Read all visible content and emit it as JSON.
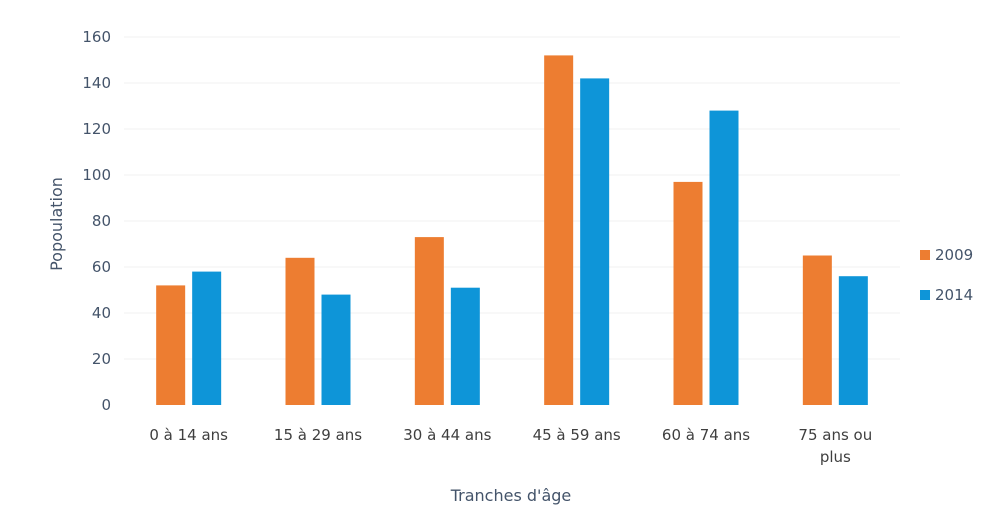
{
  "chart_data": {
    "type": "bar",
    "categories": [
      "0 à 14 ans",
      "15 à 29 ans",
      "30 à 44 ans",
      "45 à 59 ans",
      "60 à 74 ans",
      "75 ans ou plus"
    ],
    "category_lines": [
      [
        "0 à 14 ans"
      ],
      [
        "15 à 29 ans"
      ],
      [
        "30 à 44 ans"
      ],
      [
        "45 à 59 ans"
      ],
      [
        "60 à 74 ans"
      ],
      [
        "75 ans ou",
        "plus"
      ]
    ],
    "series": [
      {
        "name": "2009",
        "color": "#ED7D31",
        "values": [
          52,
          64,
          73,
          152,
          97,
          65
        ]
      },
      {
        "name": "2014",
        "color": "#0E95D8",
        "values": [
          58,
          48,
          51,
          142,
          128,
          56
        ]
      }
    ],
    "title": "",
    "xlabel": "Tranches d'âge",
    "ylabel": "Popoulation",
    "ylim": [
      0,
      160
    ],
    "yticks": [
      0,
      20,
      40,
      60,
      80,
      100,
      120,
      140,
      160
    ],
    "grid": true,
    "legend_position": "right"
  }
}
